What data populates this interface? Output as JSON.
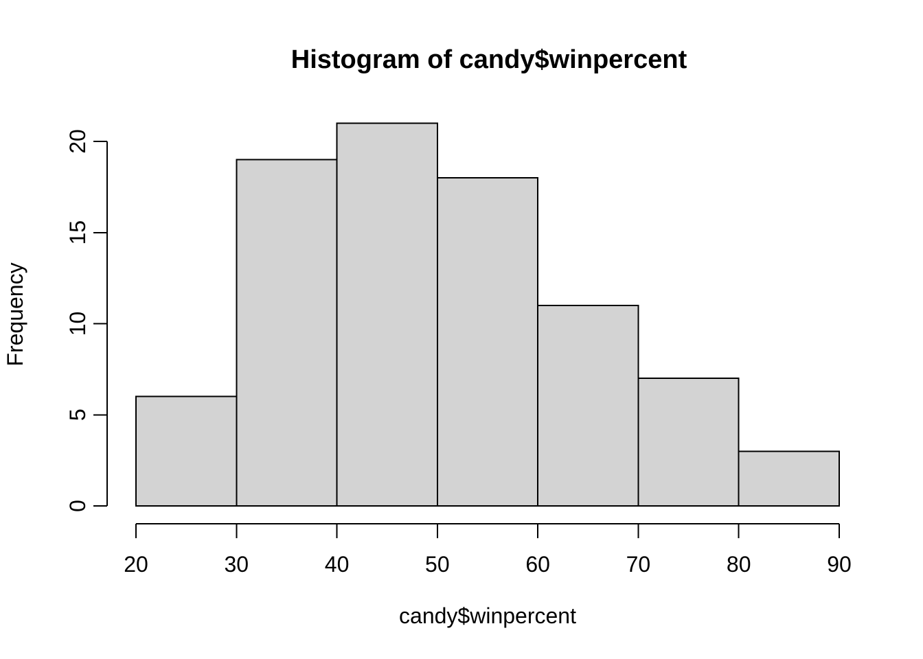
{
  "chart_data": {
    "type": "bar",
    "subtype": "histogram",
    "title": "Histogram of candy$winpercent",
    "xlabel": "candy$winpercent",
    "ylabel": "Frequency",
    "breaks": [
      20,
      30,
      40,
      50,
      60,
      70,
      80,
      90
    ],
    "counts": [
      6,
      19,
      21,
      18,
      11,
      7,
      3
    ],
    "bins": [
      {
        "range": [
          20,
          30
        ],
        "count": 6
      },
      {
        "range": [
          30,
          40
        ],
        "count": 19
      },
      {
        "range": [
          40,
          50
        ],
        "count": 21
      },
      {
        "range": [
          50,
          60
        ],
        "count": 18
      },
      {
        "range": [
          60,
          70
        ],
        "count": 11
      },
      {
        "range": [
          70,
          80
        ],
        "count": 7
      },
      {
        "range": [
          80,
          90
        ],
        "count": 3
      }
    ],
    "x_ticks": [
      20,
      30,
      40,
      50,
      60,
      70,
      80,
      90
    ],
    "x_tick_labels": [
      "20",
      "30",
      "40",
      "50",
      "60",
      "70",
      "80",
      "90"
    ],
    "y_ticks": [
      0,
      5,
      10,
      15,
      20
    ],
    "y_tick_labels": [
      "0",
      "5",
      "10",
      "15",
      "20"
    ],
    "xlim": [
      20,
      90
    ],
    "ylim": [
      0,
      21
    ],
    "grid": false,
    "legend": null,
    "colors": {
      "bar_fill": "#d3d3d3",
      "bar_stroke": "#000000",
      "axis": "#000000",
      "text": "#000000",
      "background": "#ffffff"
    }
  }
}
